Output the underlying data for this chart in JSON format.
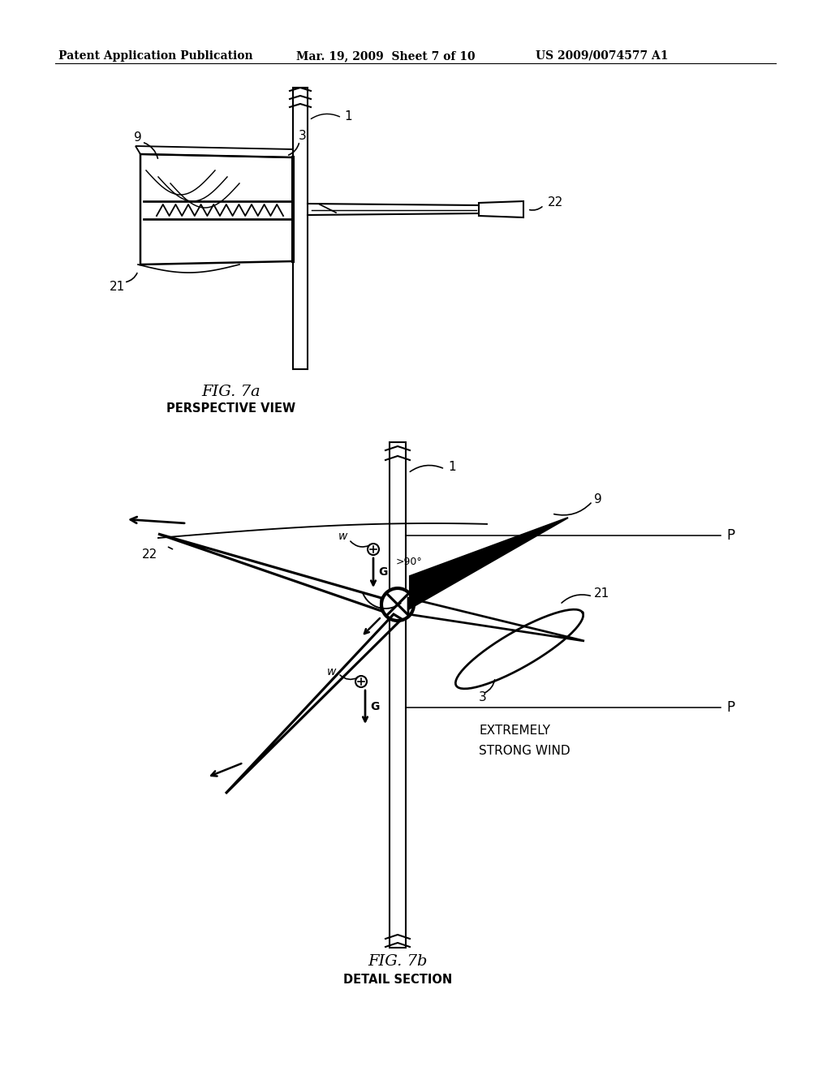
{
  "bg_color": "#ffffff",
  "text_color": "#000000",
  "header_left": "Patent Application Publication",
  "header_mid": "Mar. 19, 2009  Sheet 7 of 10",
  "header_right": "US 2009/0074577 A1",
  "fig7a_label": "FIG. 7a",
  "fig7a_sub": "PERSPECTIVE VIEW",
  "fig7b_label": "FIG. 7b",
  "fig7b_sub": "DETAIL SECTION",
  "line_color": "#000000",
  "lw": 1.5,
  "lw_thick": 3.0,
  "lw_thin": 0.8
}
